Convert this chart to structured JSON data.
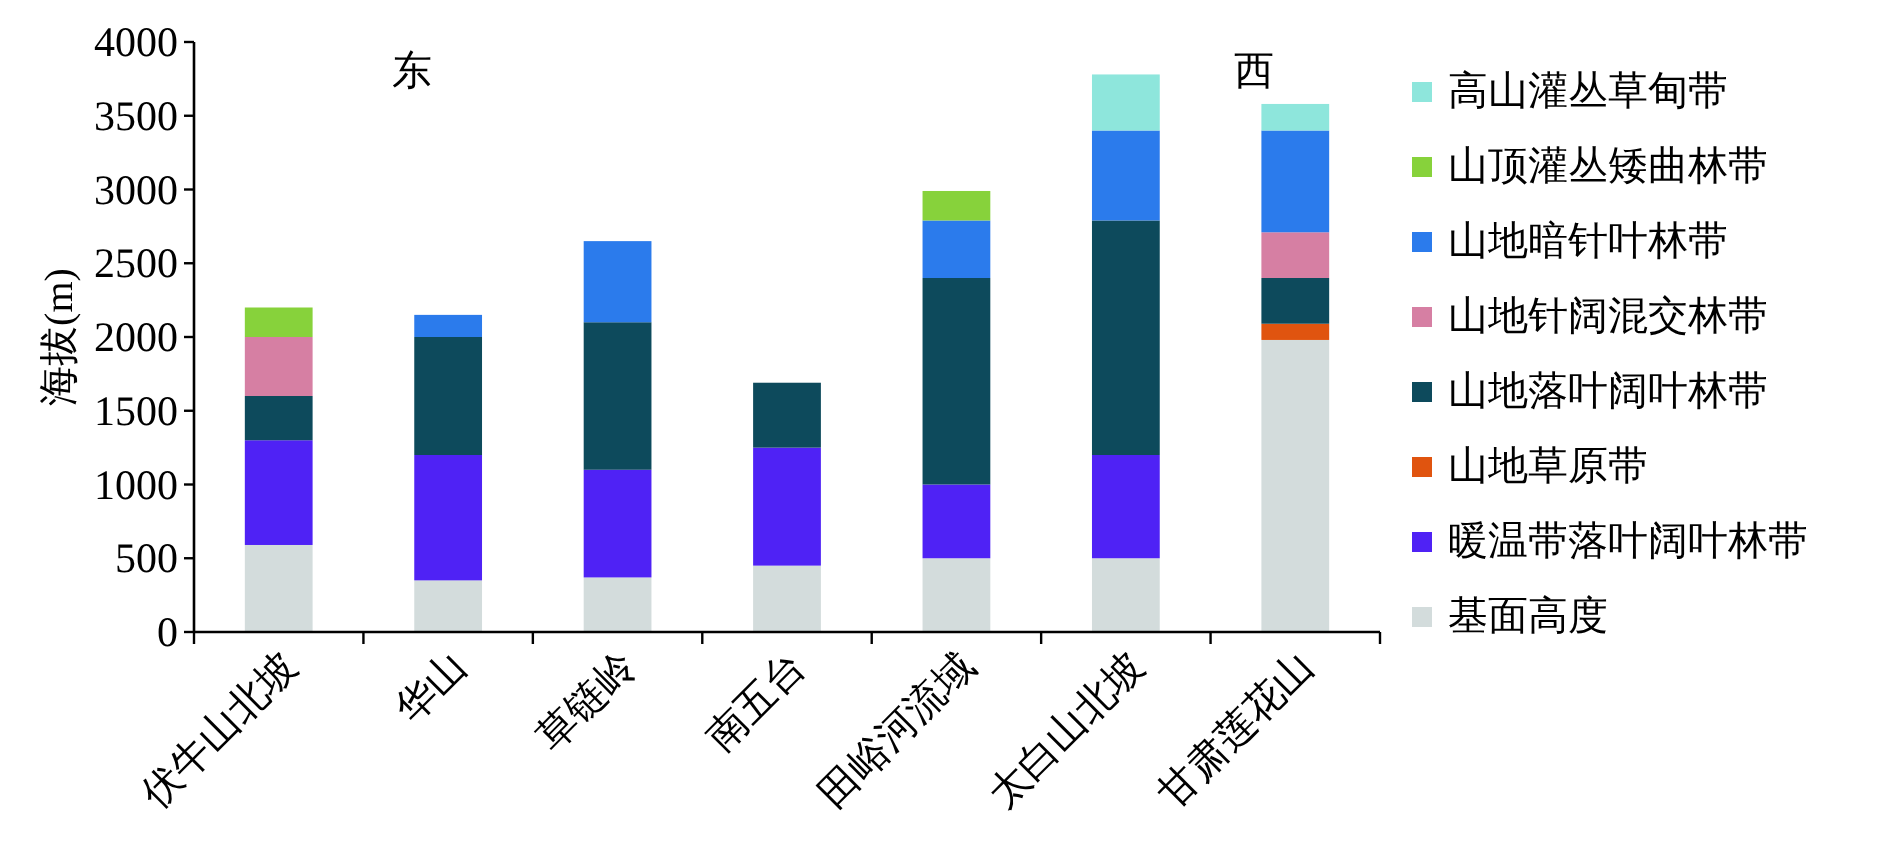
{
  "chart_data": {
    "type": "bar",
    "stacked": true,
    "ylabel": "海拔(m)",
    "ylim": [
      0,
      4000
    ],
    "yticks": [
      0,
      500,
      1000,
      1500,
      2000,
      2500,
      3000,
      3500,
      4000
    ],
    "legend": "right",
    "grid": false,
    "annotations": [
      "东",
      "西"
    ],
    "categories": [
      "伏牛山北坡",
      "华山",
      "草链岭",
      "南五台",
      "田峪河流域",
      "太白山北坡",
      "甘肃莲花山"
    ],
    "series": [
      {
        "name": "基面高度",
        "color": "#d3dcdc",
        "values": [
          590,
          350,
          370,
          450,
          500,
          500,
          1980
        ]
      },
      {
        "name": "暖温带落叶阔叶林带",
        "color": "#4f22f5",
        "values": [
          710,
          850,
          730,
          800,
          500,
          700,
          null
        ]
      },
      {
        "name": "山地草原带",
        "color": "#e0540f",
        "values": [
          null,
          null,
          null,
          null,
          null,
          null,
          110
        ]
      },
      {
        "name": "山地落叶阔叶林带",
        "color": "#0d4a5c",
        "values": [
          300,
          800,
          1000,
          440,
          1400,
          1590,
          310
        ]
      },
      {
        "name": "山地针阔混交林带",
        "color": "#d67fa3",
        "values": [
          400,
          null,
          null,
          null,
          null,
          null,
          310
        ]
      },
      {
        "name": "山地暗针叶林带",
        "color": "#2b7bec",
        "values": [
          null,
          150,
          550,
          null,
          390,
          610,
          690
        ]
      },
      {
        "name": "山顶灌丛矮曲林带",
        "color": "#87d23b",
        "values": [
          200,
          null,
          null,
          null,
          200,
          null,
          null
        ]
      },
      {
        "name": "高山灌丛草甸带",
        "color": "#8ee6dc",
        "values": [
          null,
          null,
          null,
          null,
          null,
          380,
          180
        ]
      }
    ]
  }
}
